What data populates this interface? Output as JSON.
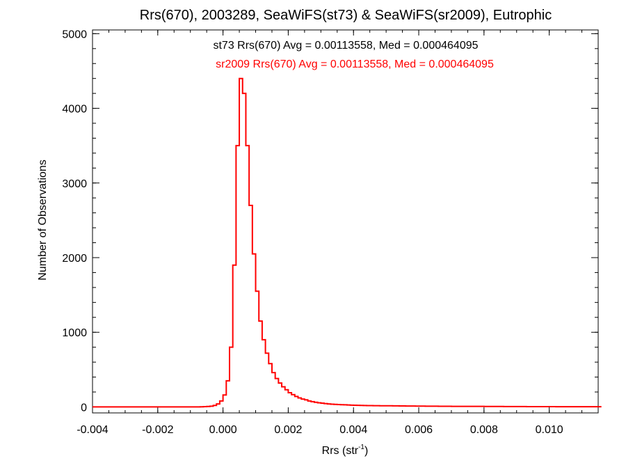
{
  "chart_data": {
    "type": "histogram",
    "title": "Rrs(670), 2003289, SeaWiFS(st73) & SeaWiFS(sr2009), Eutrophic",
    "xlabel": "Rrs (str",
    "xlabel_sup": "-1",
    "xlabel_close": ")",
    "ylabel": "Number of Observations",
    "xlim": [
      -0.004,
      0.0115
    ],
    "ylim": [
      -80,
      5050
    ],
    "x_ticks": [
      -0.004,
      -0.002,
      0.0,
      0.002,
      0.004,
      0.006,
      0.008,
      0.01
    ],
    "x_tick_labels": [
      "-0.004",
      "-0.002",
      "0.000",
      "0.002",
      "0.004",
      "0.006",
      "0.008",
      "0.010"
    ],
    "y_ticks": [
      0,
      1000,
      2000,
      3000,
      4000,
      5000
    ],
    "y_tick_labels": [
      "0",
      "1000",
      "2000",
      "3000",
      "4000",
      "5000"
    ],
    "grid": false,
    "annotations": [
      {
        "text": "st73 Rrs(670) Avg = 0.00113558, Med = 0.000464095",
        "color": "#000000"
      },
      {
        "text": "sr2009 Rrs(670) Avg = 0.00113558, Med = 0.000464095",
        "color": "#ff0000"
      }
    ],
    "series": [
      {
        "name": "sr2009",
        "color": "#ff0000",
        "bin_width": 0.0001,
        "x_start": -0.004,
        "counts": [
          0,
          0,
          0,
          0,
          0,
          0,
          0,
          0,
          0,
          0,
          0,
          0,
          0,
          0,
          0,
          0,
          0,
          0,
          0,
          0,
          0,
          0,
          0,
          0,
          0,
          0,
          0,
          0,
          0,
          0,
          0,
          0,
          0,
          2,
          4,
          6,
          10,
          20,
          40,
          80,
          160,
          350,
          800,
          1900,
          3500,
          4400,
          4200,
          3500,
          2700,
          2050,
          1550,
          1150,
          900,
          720,
          580,
          460,
          380,
          320,
          270,
          230,
          190,
          165,
          140,
          120,
          105,
          95,
          80,
          70,
          62,
          55,
          50,
          45,
          40,
          36,
          34,
          32,
          30,
          28,
          26,
          24,
          22,
          21,
          20,
          19,
          18,
          18,
          17,
          17,
          16,
          16,
          15,
          15,
          14,
          14,
          13,
          13,
          12,
          12,
          12,
          11,
          11,
          11,
          10,
          10,
          10,
          10,
          9,
          9,
          9,
          9,
          8,
          8,
          8,
          8,
          8,
          7,
          7,
          7,
          7,
          7,
          6,
          6,
          6,
          6,
          6,
          6,
          5,
          5,
          5,
          5,
          5,
          5,
          5,
          4,
          4,
          4,
          4,
          4,
          4,
          4,
          4,
          4,
          3,
          3,
          3,
          3,
          3,
          3,
          3,
          3,
          3,
          3,
          3,
          3,
          3,
          3
        ]
      }
    ]
  }
}
